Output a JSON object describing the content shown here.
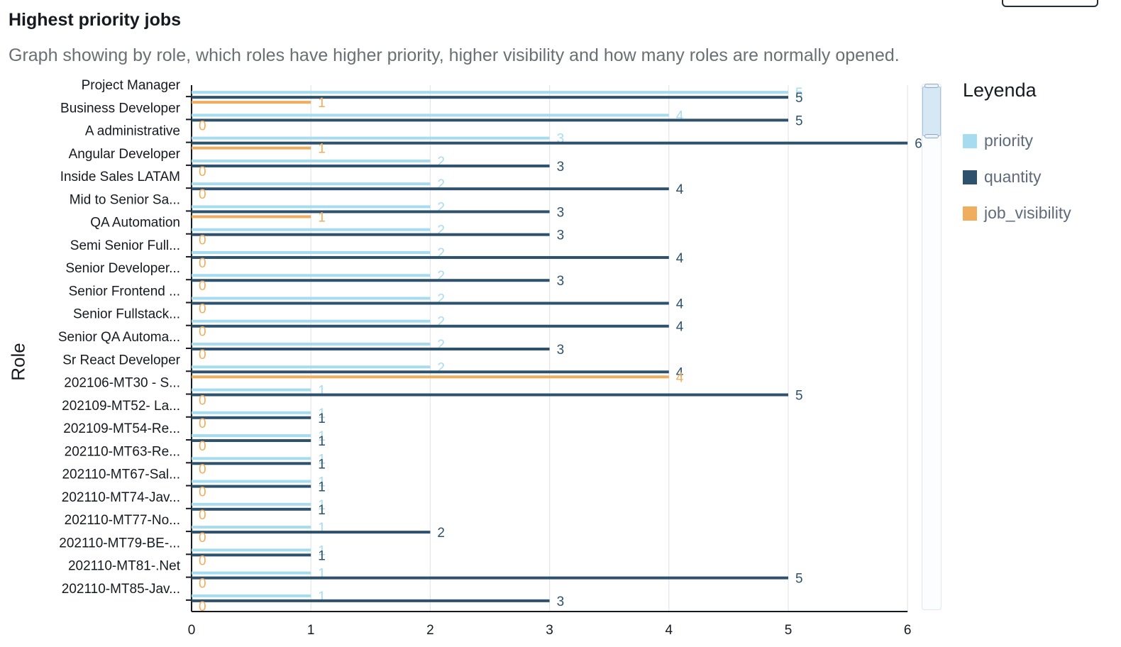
{
  "header": {
    "title": "Highest priority jobs",
    "subtitle": "Graph showing by role, which roles have higher priority, higher visibility and how many roles are normally opened."
  },
  "legend": {
    "title": "Leyenda",
    "items": [
      {
        "label": "priority",
        "color": "#a6dcef"
      },
      {
        "label": "quantity",
        "color": "#2e526e"
      },
      {
        "label": "job_visibility",
        "color": "#f0ad5d"
      }
    ]
  },
  "chart_data": {
    "type": "bar",
    "orientation": "horizontal",
    "title": "Highest priority jobs",
    "subtitle": "Graph showing by role, which roles have higher priority, higher visibility and how many roles are normally opened.",
    "ylabel": "Role",
    "xlabel": "",
    "xlim": [
      0,
      6
    ],
    "xticks": [
      0,
      1,
      2,
      3,
      4,
      5,
      6
    ],
    "grid": true,
    "legend_position": "right",
    "categories": [
      "Project Manager",
      "Business Developer",
      "A administrative",
      "Angular Developer",
      "Inside Sales LATAM",
      "Mid to Senior Sa...",
      "QA Automation",
      "Semi Senior Full...",
      "Senior Developer...",
      "Senior Frontend ...",
      "Senior Fullstack...",
      "Senior QA Automa...",
      "Sr React Developer",
      "202106-MT30 - S...",
      "202109-MT52- La...",
      "202109-MT54-Re...",
      "202110-MT63-Re...",
      "202110-MT67-Sal...",
      "202110-MT74-Jav...",
      "202110-MT77-No...",
      "202110-MT79-BE-...",
      "202110-MT81-.Net",
      "202110-MT85-Jav..."
    ],
    "series": [
      {
        "name": "priority",
        "color": "#a6dcef",
        "values": [
          5,
          4,
          3,
          2,
          2,
          2,
          2,
          2,
          2,
          2,
          2,
          2,
          2,
          1,
          1,
          1,
          1,
          1,
          1,
          1,
          1,
          1,
          1
        ]
      },
      {
        "name": "quantity",
        "color": "#2e526e",
        "values": [
          5,
          5,
          6,
          3,
          4,
          3,
          3,
          4,
          3,
          4,
          4,
          3,
          4,
          5,
          1,
          1,
          1,
          1,
          1,
          2,
          1,
          5,
          3
        ]
      },
      {
        "name": "job_visibility",
        "color": "#f0ad5d",
        "values": [
          1,
          0,
          1,
          0,
          0,
          1,
          0,
          0,
          0,
          0,
          0,
          0,
          4,
          0,
          0,
          0,
          0,
          0,
          0,
          0,
          0,
          0,
          0
        ]
      }
    ]
  }
}
